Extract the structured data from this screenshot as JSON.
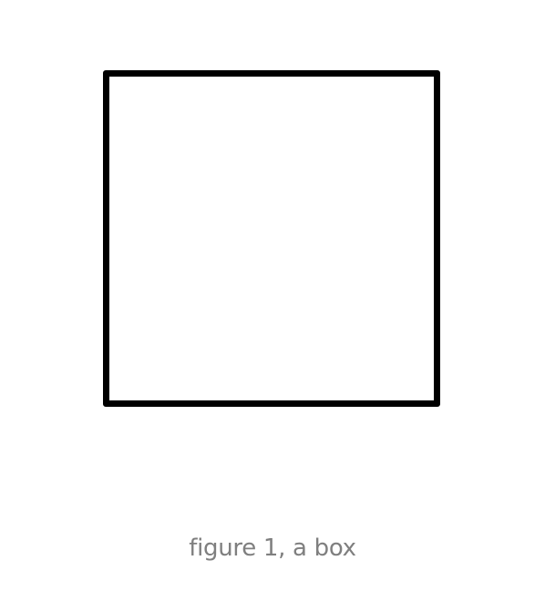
{
  "figure": {
    "shape": "square",
    "stroke_color": "#000000",
    "fill_color": "#ffffff",
    "caption": "figure 1, a box"
  },
  "colors": {
    "background": "#ffffff",
    "caption_text": "#7f7f7f"
  }
}
